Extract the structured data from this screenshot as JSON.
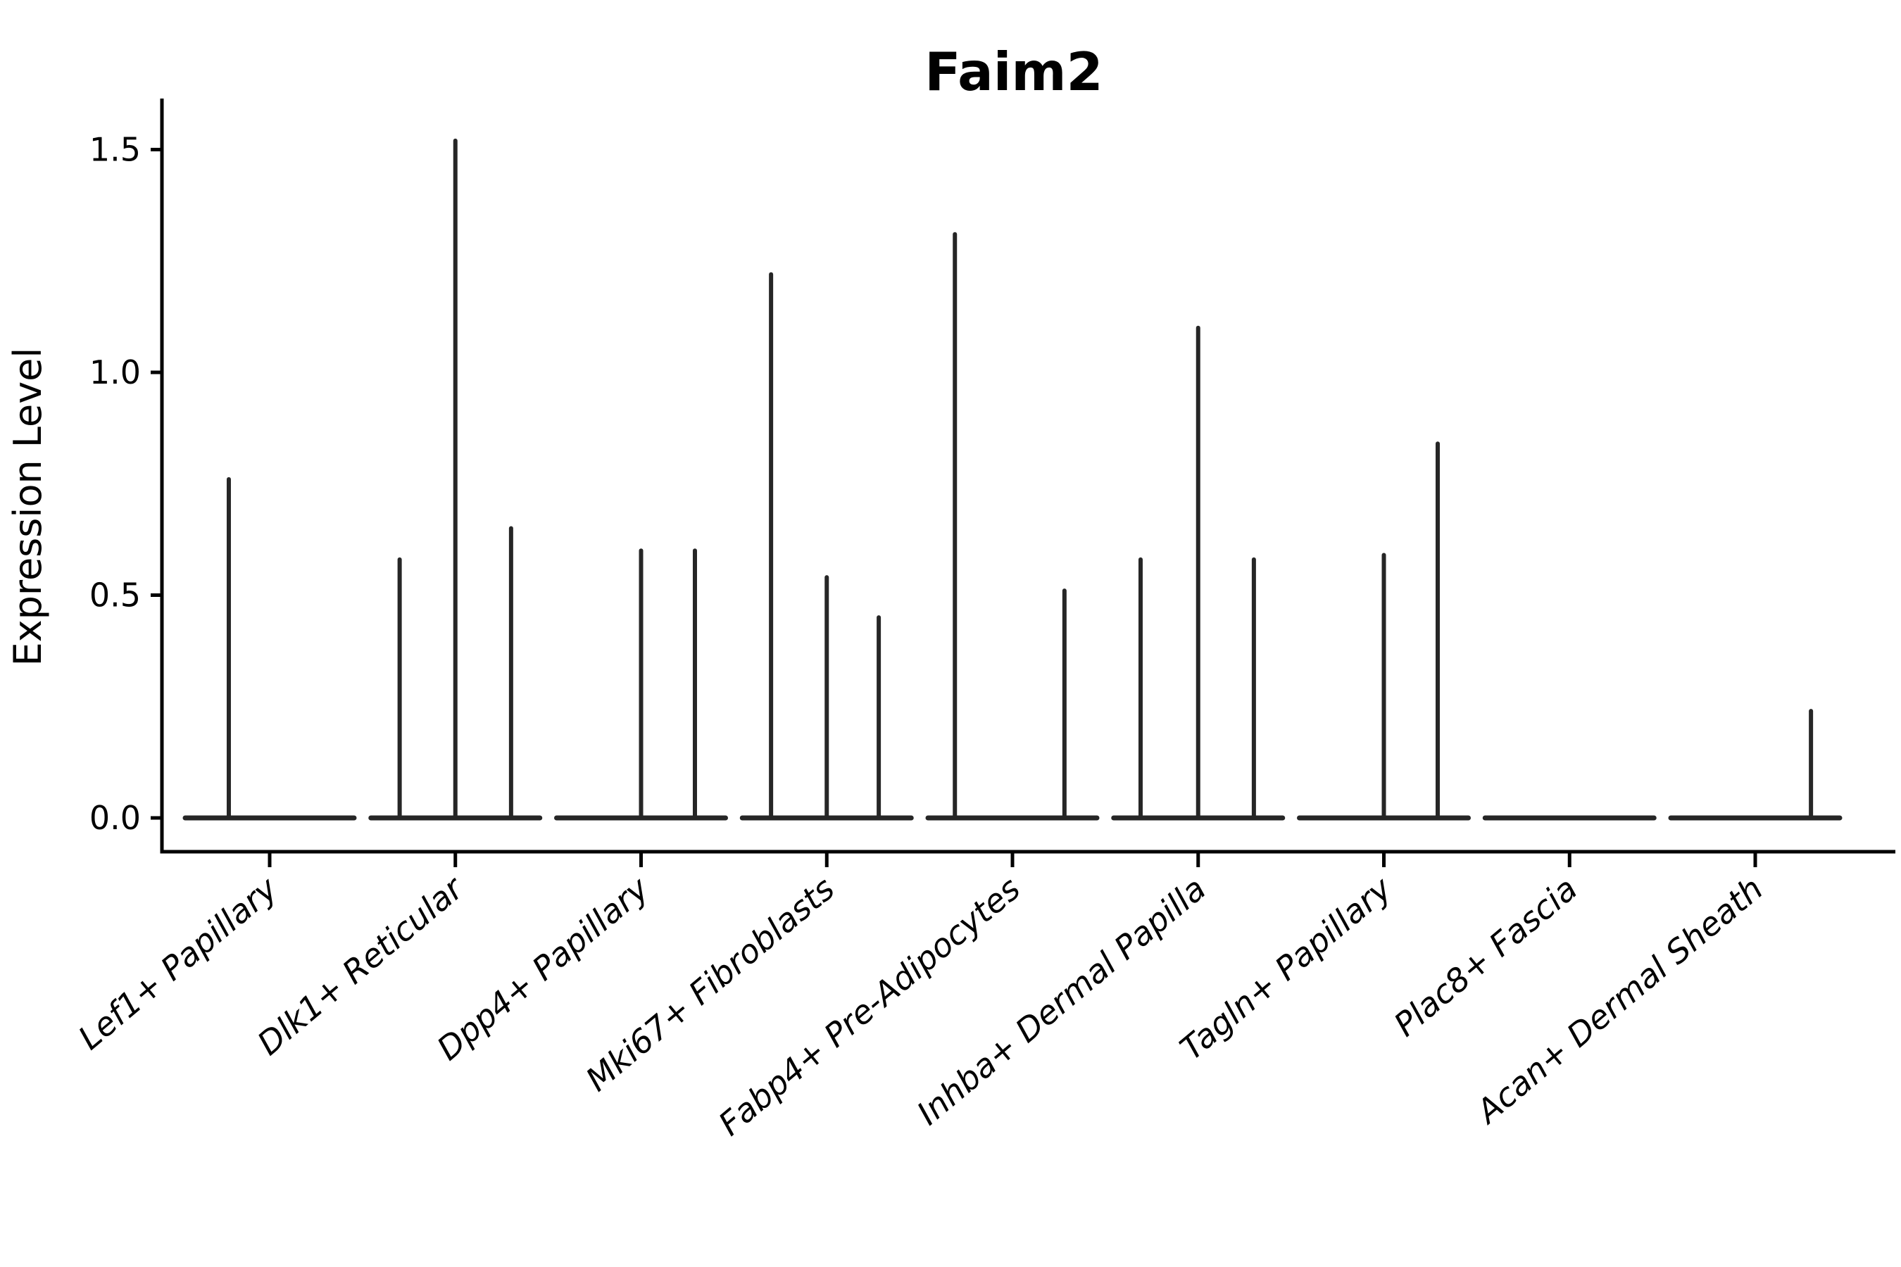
{
  "chart_data": {
    "type": "violin",
    "title": "Faim2",
    "ylabel": "Expression Level",
    "xlabel": "",
    "grid": false,
    "legend": null,
    "background": "#ffffff",
    "axis_color": "#000000",
    "violin_color": "#262626",
    "ytick_labels": [
      "0.0",
      "0.5",
      "1.0",
      "1.5"
    ],
    "ytick_values": [
      0.0,
      0.5,
      1.0,
      1.5
    ],
    "ylim": [
      -0.08,
      1.61
    ],
    "categories": [
      "Lef1+ Papillary",
      "Dlk1+ Reticular",
      "Dpp4+ Papillary",
      "Mki67+ Fibroblasts",
      "Fabp4+ Pre-Adipocytes",
      "Inhba+ Dermal Papilla",
      "Tagln+ Papillary",
      "Plac8+ Fascia",
      "Acan+ Dermal Sheath"
    ],
    "violins": [
      {
        "category": "Lef1+ Papillary",
        "baseline_value": 0.0,
        "spikes": [
          {
            "x_offset": -0.22,
            "value": 0.76
          }
        ]
      },
      {
        "category": "Dlk1+ Reticular",
        "baseline_value": 0.0,
        "spikes": [
          {
            "x_offset": -0.3,
            "value": 0.58
          },
          {
            "x_offset": 0.0,
            "value": 1.52
          },
          {
            "x_offset": 0.3,
            "value": 0.65
          }
        ]
      },
      {
        "category": "Dpp4+ Papillary",
        "baseline_value": 0.0,
        "spikes": [
          {
            "x_offset": 0.0,
            "value": 0.6
          },
          {
            "x_offset": 0.29,
            "value": 0.6
          }
        ]
      },
      {
        "category": "Mki67+ Fibroblasts",
        "baseline_value": 0.0,
        "spikes": [
          {
            "x_offset": -0.3,
            "value": 1.22
          },
          {
            "x_offset": 0.0,
            "value": 0.54
          },
          {
            "x_offset": 0.28,
            "value": 0.45
          }
        ]
      },
      {
        "category": "Fabp4+ Pre-Adipocytes",
        "baseline_value": 0.0,
        "spikes": [
          {
            "x_offset": -0.31,
            "value": 1.31
          },
          {
            "x_offset": 0.28,
            "value": 0.51
          }
        ]
      },
      {
        "category": "Inhba+ Dermal Papilla",
        "baseline_value": 0.0,
        "spikes": [
          {
            "x_offset": -0.31,
            "value": 0.58
          },
          {
            "x_offset": 0.0,
            "value": 1.1
          },
          {
            "x_offset": 0.3,
            "value": 0.58
          }
        ]
      },
      {
        "category": "Tagln+ Papillary",
        "baseline_value": 0.0,
        "spikes": [
          {
            "x_offset": 0.0,
            "value": 0.59
          },
          {
            "x_offset": 0.29,
            "value": 0.84
          }
        ]
      },
      {
        "category": "Plac8+ Fascia",
        "baseline_value": 0.0,
        "spikes": []
      },
      {
        "category": "Acan+ Dermal Sheath",
        "baseline_value": 0.0,
        "spikes": [
          {
            "x_offset": 0.3,
            "value": 0.24
          }
        ]
      }
    ]
  }
}
